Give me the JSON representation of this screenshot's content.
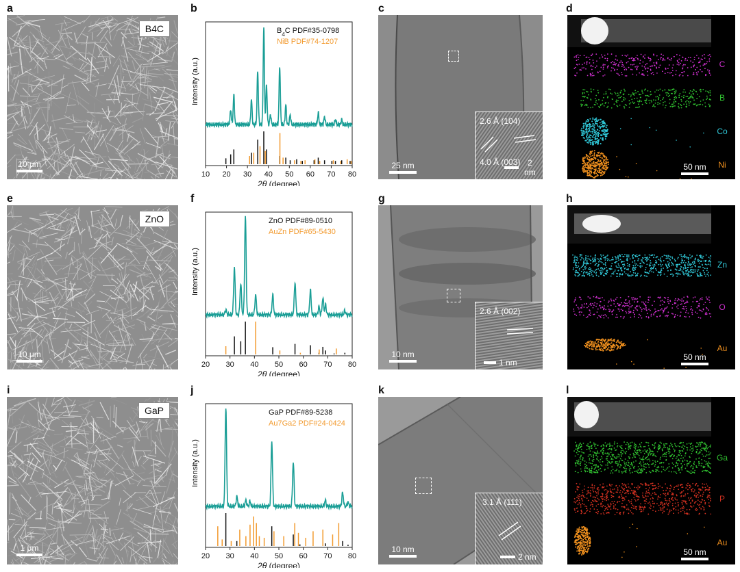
{
  "panels": {
    "a": {
      "label": "a",
      "material": "B4C",
      "scale": "10 μm"
    },
    "b": {
      "label": "b"
    },
    "c": {
      "label": "c",
      "scale": "25 nm",
      "inset_scale": "2 nm",
      "d1": "2.6 Å (104)",
      "d2": "4.0 Å (003)"
    },
    "d": {
      "label": "d",
      "scale": "50 nm",
      "elements": [
        "C",
        "B",
        "Co",
        "Ni"
      ]
    },
    "e": {
      "label": "e",
      "material": "ZnO",
      "scale": "10 μm"
    },
    "f": {
      "label": "f"
    },
    "g": {
      "label": "g",
      "scale": "10 nm",
      "inset_scale": "1 nm",
      "d1": "2.6 Å (002)"
    },
    "h": {
      "label": "h",
      "scale": "50 nm",
      "elements": [
        "Zn",
        "O",
        "Au"
      ]
    },
    "i": {
      "label": "i",
      "material": "GaP",
      "scale": "1 μm"
    },
    "j": {
      "label": "j"
    },
    "k": {
      "label": "k",
      "scale": "10 nm",
      "inset_scale": "2 nm",
      "d1": "3.1 Å (111)"
    },
    "l": {
      "label": "l",
      "scale": "50 nm",
      "elements": [
        "Ga",
        "P",
        "Au"
      ]
    }
  },
  "colors": {
    "teal": "#1a9e96",
    "ref_black": "#111111",
    "ref_orange": "#f29a2e",
    "C": "#d030d0",
    "B": "#30c030",
    "Co": "#30c8d8",
    "Ni": "#f0901e",
    "Zn": "#30c8d8",
    "O": "#d030d0",
    "Au": "#f0901e",
    "Ga": "#30c030",
    "P": "#d03020"
  },
  "chart_data": [
    {
      "type": "line",
      "panel": "b",
      "xlabel": "2θ (degree)",
      "ylabel": "Intensity (a.u.)",
      "xlim": [
        10,
        80
      ],
      "xticks": [
        10,
        20,
        30,
        40,
        50,
        60,
        70,
        80
      ],
      "legend": [
        "B4C PDF#35-0798",
        "NiB PDF#74-1207"
      ],
      "series": [
        {
          "name": "B4C PDF#35-0798",
          "peaks": [
            [
              19.7,
              0.18
            ],
            [
              22.0,
              0.3
            ],
            [
              23.5,
              0.45
            ],
            [
              31.9,
              0.35
            ],
            [
              34.9,
              0.75
            ],
            [
              37.8,
              1.0
            ],
            [
              39.1,
              0.45
            ],
            [
              45.4,
              0.25
            ],
            [
              48.3,
              0.2
            ],
            [
              50.4,
              0.12
            ],
            [
              53.5,
              0.15
            ],
            [
              56.2,
              0.1
            ],
            [
              61.8,
              0.12
            ],
            [
              63.8,
              0.2
            ],
            [
              66.8,
              0.12
            ],
            [
              70.3,
              0.1
            ],
            [
              72.0,
              0.1
            ],
            [
              75.0,
              0.12
            ],
            [
              79.0,
              0.1
            ]
          ]
        },
        {
          "name": "NiB PDF#74-1207",
          "peaks": [
            [
              31.0,
              0.25
            ],
            [
              33.0,
              0.35
            ],
            [
              36.0,
              0.55
            ],
            [
              38.5,
              0.4
            ],
            [
              45.5,
              0.95
            ],
            [
              47.0,
              0.2
            ],
            [
              52.5,
              0.12
            ],
            [
              55.5,
              0.1
            ],
            [
              57.5,
              0.12
            ],
            [
              62.2,
              0.15
            ],
            [
              64.5,
              0.1
            ],
            [
              71.0,
              0.12
            ],
            [
              74.5,
              0.1
            ],
            [
              77.6,
              0.15
            ],
            [
              79.5,
              0.1
            ]
          ]
        }
      ],
      "measured_peaks": [
        [
          22.0,
          0.15
        ],
        [
          23.5,
          0.3
        ],
        [
          31.9,
          0.25
        ],
        [
          34.9,
          0.55
        ],
        [
          37.8,
          1.0
        ],
        [
          39.1,
          0.4
        ],
        [
          41.0,
          0.1
        ],
        [
          45.4,
          0.6
        ],
        [
          48.3,
          0.2
        ],
        [
          50.4,
          0.1
        ],
        [
          63.8,
          0.12
        ],
        [
          66.8,
          0.08
        ],
        [
          72.0,
          0.05
        ],
        [
          75.0,
          0.05
        ]
      ]
    },
    {
      "type": "line",
      "panel": "f",
      "xlabel": "2θ (degree)",
      "ylabel": "Intensity (a.u.)",
      "xlim": [
        20,
        80
      ],
      "xticks": [
        20,
        30,
        40,
        50,
        60,
        70,
        80
      ],
      "legend": [
        "ZnO  PDF#89-0510",
        "AuZn PDF#65-5430"
      ],
      "series": [
        {
          "name": "ZnO  PDF#89-0510",
          "peaks": [
            [
              31.8,
              0.55
            ],
            [
              34.4,
              0.4
            ],
            [
              36.3,
              1.0
            ],
            [
              47.5,
              0.22
            ],
            [
              56.6,
              0.32
            ],
            [
              62.9,
              0.28
            ],
            [
              66.4,
              0.05
            ],
            [
              68.0,
              0.23
            ],
            [
              69.1,
              0.12
            ],
            [
              72.6,
              0.03
            ],
            [
              77.0,
              0.05
            ]
          ]
        },
        {
          "name": "AuZn PDF#65-5430",
          "peaks": [
            [
              28.3,
              0.25
            ],
            [
              40.5,
              1.0
            ],
            [
              50.4,
              0.12
            ],
            [
              58.8,
              0.05
            ],
            [
              66.5,
              0.15
            ],
            [
              73.5,
              0.18
            ]
          ]
        }
      ],
      "measured_peaks": [
        [
          28.3,
          0.05
        ],
        [
          31.8,
          0.48
        ],
        [
          34.4,
          0.32
        ],
        [
          36.3,
          1.0
        ],
        [
          40.5,
          0.2
        ],
        [
          47.5,
          0.2
        ],
        [
          56.6,
          0.33
        ],
        [
          62.9,
          0.25
        ],
        [
          66.4,
          0.08
        ],
        [
          68.0,
          0.17
        ],
        [
          69.1,
          0.1
        ],
        [
          77.0,
          0.04
        ]
      ]
    },
    {
      "type": "line",
      "panel": "j",
      "xlabel": "2θ (degree)",
      "ylabel": "Intensity (a.u.)",
      "xlim": [
        20,
        80
      ],
      "xticks": [
        20,
        30,
        40,
        50,
        60,
        70,
        80
      ],
      "legend": [
        "GaP PDF#89-5238",
        "Au7Ga2 PDF#24-0424"
      ],
      "series": [
        {
          "name": "GaP PDF#89-5238",
          "peaks": [
            [
              28.3,
              1.0
            ],
            [
              32.8,
              0.15
            ],
            [
              47.1,
              0.6
            ],
            [
              55.9,
              0.35
            ],
            [
              58.6,
              0.05
            ],
            [
              69.0,
              0.08
            ],
            [
              76.1,
              0.15
            ],
            [
              78.3,
              0.04
            ]
          ]
        },
        {
          "name": "Au7Ga2 PDF#24-0424",
          "peaks": [
            [
              25.0,
              0.6
            ],
            [
              26.8,
              0.2
            ],
            [
              30.5,
              0.15
            ],
            [
              34.0,
              0.5
            ],
            [
              36.5,
              0.3
            ],
            [
              38.2,
              0.65
            ],
            [
              39.6,
              0.9
            ],
            [
              40.8,
              0.7
            ],
            [
              42.0,
              0.3
            ],
            [
              44.0,
              0.25
            ],
            [
              48.0,
              0.45
            ],
            [
              52.0,
              0.3
            ],
            [
              56.5,
              0.7
            ],
            [
              58.0,
              0.4
            ],
            [
              61.0,
              0.25
            ],
            [
              64.0,
              0.45
            ],
            [
              68.0,
              0.5
            ],
            [
              72.0,
              0.35
            ],
            [
              74.5,
              0.7
            ]
          ]
        }
      ],
      "measured_peaks": [
        [
          28.3,
          1.0
        ],
        [
          32.8,
          0.1
        ],
        [
          36.5,
          0.06
        ],
        [
          38.2,
          0.05
        ],
        [
          47.1,
          0.66
        ],
        [
          55.9,
          0.45
        ],
        [
          69.0,
          0.06
        ],
        [
          76.1,
          0.14
        ],
        [
          78.3,
          0.04
        ]
      ]
    }
  ]
}
